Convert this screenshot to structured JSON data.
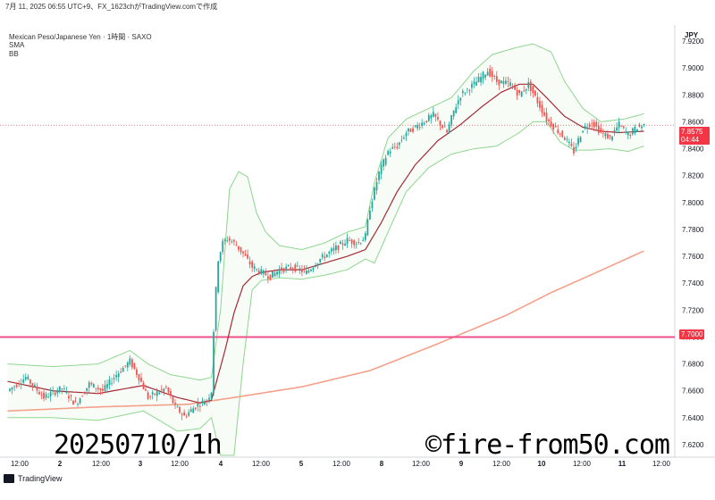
{
  "header": {
    "snapshot": "7月 11, 2025 06:55 UTC+9、FX_1623chがTradingView.comで作成",
    "symbol": "Mexican Peso/Japanese Yen · 1時間 · SAXO",
    "indicator_sma": "SMA",
    "indicator_bb": "BB",
    "currency": "JPY"
  },
  "footer": {
    "logo_text": "TradingView"
  },
  "captions": {
    "left": "20250710/1h",
    "right": "©fire-from50.com"
  },
  "price_tags": {
    "last": {
      "price": "7.8575",
      "timer": "04:44",
      "color": "#f23645"
    },
    "level": {
      "price": "7.7000",
      "color": "#f23645"
    }
  },
  "colors": {
    "up": "#26a69a",
    "down": "#ef5350",
    "sma_short": "#a52a36",
    "sma_long": "#f4a08a",
    "bb": "#8fd58f",
    "hline": "#f0508a"
  },
  "chart_data": {
    "type": "candlestick",
    "y_axis": {
      "range": [
        7.612,
        7.932
      ],
      "ticks": [
        "7.9200",
        "7.9000",
        "7.8800",
        "7.8600",
        "7.8400",
        "7.8200",
        "7.8000",
        "7.7800",
        "7.7600",
        "7.7400",
        "7.7200",
        "7.7000",
        "7.6800",
        "7.6600",
        "7.6400",
        "7.6200"
      ]
    },
    "x_axis": {
      "ticks": [
        "12:00",
        "2",
        "12:00",
        "3",
        "12:00",
        "4",
        "12:00",
        "5",
        "12:00",
        "8",
        "12:00",
        "9",
        "12:00",
        "10",
        "12:00",
        "11",
        "12:00"
      ]
    },
    "horizontal_line": 7.7,
    "last_price": 7.8575,
    "close_path": [
      [
        0,
        7.66
      ],
      [
        8,
        7.67
      ],
      [
        16,
        7.655
      ],
      [
        24,
        7.662
      ],
      [
        30,
        7.65
      ],
      [
        36,
        7.665
      ],
      [
        42,
        7.66
      ],
      [
        48,
        7.672
      ],
      [
        54,
        7.682
      ],
      [
        58,
        7.67
      ],
      [
        62,
        7.655
      ],
      [
        70,
        7.662
      ],
      [
        74,
        7.648
      ],
      [
        78,
        7.641
      ],
      [
        84,
        7.65
      ],
      [
        88,
        7.653
      ],
      [
        90,
        7.66
      ],
      [
        91,
        7.705
      ],
      [
        92,
        7.735
      ],
      [
        93,
        7.758
      ],
      [
        95,
        7.77
      ],
      [
        97,
        7.773
      ],
      [
        100,
        7.77
      ],
      [
        104,
        7.762
      ],
      [
        108,
        7.752
      ],
      [
        112,
        7.748
      ],
      [
        116,
        7.745
      ],
      [
        120,
        7.75
      ],
      [
        126,
        7.752
      ],
      [
        132,
        7.748
      ],
      [
        138,
        7.758
      ],
      [
        144,
        7.765
      ],
      [
        150,
        7.772
      ],
      [
        155,
        7.77
      ],
      [
        158,
        7.775
      ],
      [
        160,
        7.796
      ],
      [
        164,
        7.822
      ],
      [
        168,
        7.838
      ],
      [
        172,
        7.842
      ],
      [
        176,
        7.852
      ],
      [
        182,
        7.858
      ],
      [
        188,
        7.865
      ],
      [
        194,
        7.852
      ],
      [
        197,
        7.868
      ],
      [
        200,
        7.88
      ],
      [
        206,
        7.888
      ],
      [
        212,
        7.898
      ],
      [
        216,
        7.89
      ],
      [
        222,
        7.888
      ],
      [
        226,
        7.88
      ],
      [
        230,
        7.888
      ],
      [
        234,
        7.875
      ],
      [
        238,
        7.862
      ],
      [
        242,
        7.855
      ],
      [
        246,
        7.848
      ],
      [
        250,
        7.838
      ],
      [
        254,
        7.855
      ],
      [
        258,
        7.86
      ],
      [
        262,
        7.852
      ],
      [
        266,
        7.848
      ],
      [
        270,
        7.858
      ],
      [
        274,
        7.85
      ],
      [
        278,
        7.856
      ],
      [
        281,
        7.8575
      ]
    ],
    "sma_short_path": [
      [
        0,
        7.667
      ],
      [
        20,
        7.66
      ],
      [
        40,
        7.658
      ],
      [
        60,
        7.664
      ],
      [
        75,
        7.655
      ],
      [
        85,
        7.651
      ],
      [
        90,
        7.653
      ],
      [
        96,
        7.69
      ],
      [
        100,
        7.718
      ],
      [
        104,
        7.738
      ],
      [
        108,
        7.745
      ],
      [
        112,
        7.748
      ],
      [
        120,
        7.75
      ],
      [
        130,
        7.75
      ],
      [
        140,
        7.755
      ],
      [
        150,
        7.76
      ],
      [
        158,
        7.765
      ],
      [
        165,
        7.785
      ],
      [
        172,
        7.808
      ],
      [
        180,
        7.828
      ],
      [
        190,
        7.846
      ],
      [
        200,
        7.858
      ],
      [
        210,
        7.872
      ],
      [
        218,
        7.882
      ],
      [
        226,
        7.888
      ],
      [
        232,
        7.888
      ],
      [
        238,
        7.878
      ],
      [
        246,
        7.864
      ],
      [
        254,
        7.856
      ],
      [
        262,
        7.853
      ],
      [
        270,
        7.852
      ],
      [
        281,
        7.853
      ]
    ],
    "sma_long_path": [
      [
        0,
        7.645
      ],
      [
        40,
        7.648
      ],
      [
        80,
        7.65
      ],
      [
        100,
        7.655
      ],
      [
        130,
        7.663
      ],
      [
        160,
        7.675
      ],
      [
        190,
        7.695
      ],
      [
        220,
        7.716
      ],
      [
        240,
        7.733
      ],
      [
        260,
        7.748
      ],
      [
        281,
        7.764
      ]
    ],
    "bb_upper_path": [
      [
        0,
        7.68
      ],
      [
        20,
        7.678
      ],
      [
        40,
        7.68
      ],
      [
        54,
        7.69
      ],
      [
        62,
        7.68
      ],
      [
        72,
        7.672
      ],
      [
        85,
        7.668
      ],
      [
        90,
        7.67
      ],
      [
        94,
        7.72
      ],
      [
        98,
        7.81
      ],
      [
        102,
        7.823
      ],
      [
        106,
        7.819
      ],
      [
        110,
        7.792
      ],
      [
        114,
        7.778
      ],
      [
        120,
        7.768
      ],
      [
        130,
        7.765
      ],
      [
        140,
        7.77
      ],
      [
        150,
        7.778
      ],
      [
        158,
        7.782
      ],
      [
        162,
        7.815
      ],
      [
        168,
        7.848
      ],
      [
        176,
        7.862
      ],
      [
        186,
        7.87
      ],
      [
        196,
        7.878
      ],
      [
        206,
        7.898
      ],
      [
        214,
        7.91
      ],
      [
        224,
        7.915
      ],
      [
        232,
        7.918
      ],
      [
        240,
        7.912
      ],
      [
        246,
        7.89
      ],
      [
        254,
        7.87
      ],
      [
        262,
        7.86
      ],
      [
        272,
        7.862
      ],
      [
        281,
        7.866
      ]
    ],
    "bb_lower_path": [
      [
        0,
        7.64
      ],
      [
        20,
        7.64
      ],
      [
        40,
        7.638
      ],
      [
        60,
        7.645
      ],
      [
        75,
        7.63
      ],
      [
        85,
        7.632
      ],
      [
        90,
        7.64
      ],
      [
        94,
        7.612
      ],
      [
        100,
        7.612
      ],
      [
        104,
        7.68
      ],
      [
        108,
        7.735
      ],
      [
        112,
        7.742
      ],
      [
        120,
        7.744
      ],
      [
        130,
        7.743
      ],
      [
        140,
        7.746
      ],
      [
        150,
        7.75
      ],
      [
        158,
        7.758
      ],
      [
        162,
        7.755
      ],
      [
        168,
        7.778
      ],
      [
        176,
        7.808
      ],
      [
        186,
        7.826
      ],
      [
        196,
        7.836
      ],
      [
        206,
        7.84
      ],
      [
        216,
        7.842
      ],
      [
        226,
        7.852
      ],
      [
        232,
        7.86
      ],
      [
        238,
        7.86
      ],
      [
        244,
        7.845
      ],
      [
        250,
        7.839
      ],
      [
        258,
        7.839
      ],
      [
        266,
        7.84
      ],
      [
        274,
        7.838
      ],
      [
        281,
        7.842
      ]
    ]
  }
}
